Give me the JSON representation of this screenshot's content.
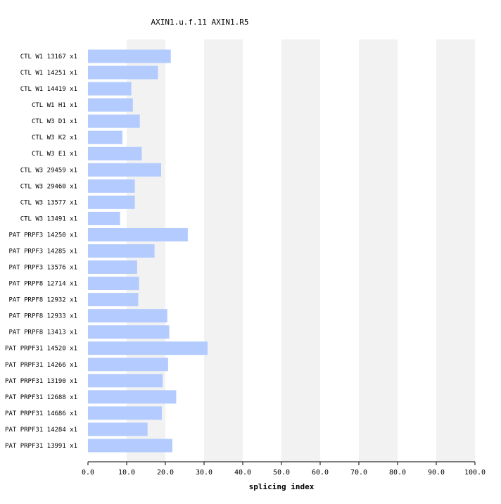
{
  "chart_data": {
    "type": "bar",
    "orientation": "horizontal",
    "title": "AXIN1.u.f.11  AXIN1.R5",
    "xlabel": "splicing index",
    "ylabel": "",
    "xlim": [
      0,
      100
    ],
    "xticks": [
      "0.0",
      "10.0",
      "20.0",
      "30.0",
      "40.0",
      "50.0",
      "60.0",
      "70.0",
      "80.0",
      "90.0",
      "100.0"
    ],
    "grid": "alternating vertical bands",
    "bar_color": "#b3cbff",
    "band_color": "#f2f2f2",
    "categories": [
      "CTL W1 13167 x1",
      "CTL W1 14251 x1",
      "CTL W1 14419 x1",
      "CTL W1 H1 x1",
      "CTL W3 D1 x1",
      "CTL W3 K2 x1",
      "CTL W3 E1 x1",
      "CTL W3 29459 x1",
      "CTL W3 29460 x1",
      "CTL W3 13577 x1",
      "CTL W3 13491 x1",
      "PAT PRPF3 14250 x1",
      "PAT PRPF3 14285 x1",
      "PAT PRPF3 13576 x1",
      "PAT PRPF8 12714 x1",
      "PAT PRPF8 12932 x1",
      "PAT PRPF8 12933 x1",
      "PAT PRPF8 13413 x1",
      "PAT PRPF31 14520 x1",
      "PAT PRPF31 14266 x1",
      "PAT PRPF31 13190 x1",
      "PAT PRPF31 12688 x1",
      "PAT PRPF31 14686 x1",
      "PAT PRPF31 14284 x1",
      "PAT PRPF31 13991 x1"
    ],
    "values": [
      21.4,
      18.1,
      11.2,
      11.6,
      13.4,
      8.9,
      13.9,
      18.9,
      12.1,
      12.1,
      8.3,
      25.8,
      17.2,
      12.7,
      13.2,
      13.0,
      20.5,
      21.0,
      30.9,
      20.7,
      19.3,
      22.8,
      19.1,
      15.4,
      21.8
    ]
  }
}
